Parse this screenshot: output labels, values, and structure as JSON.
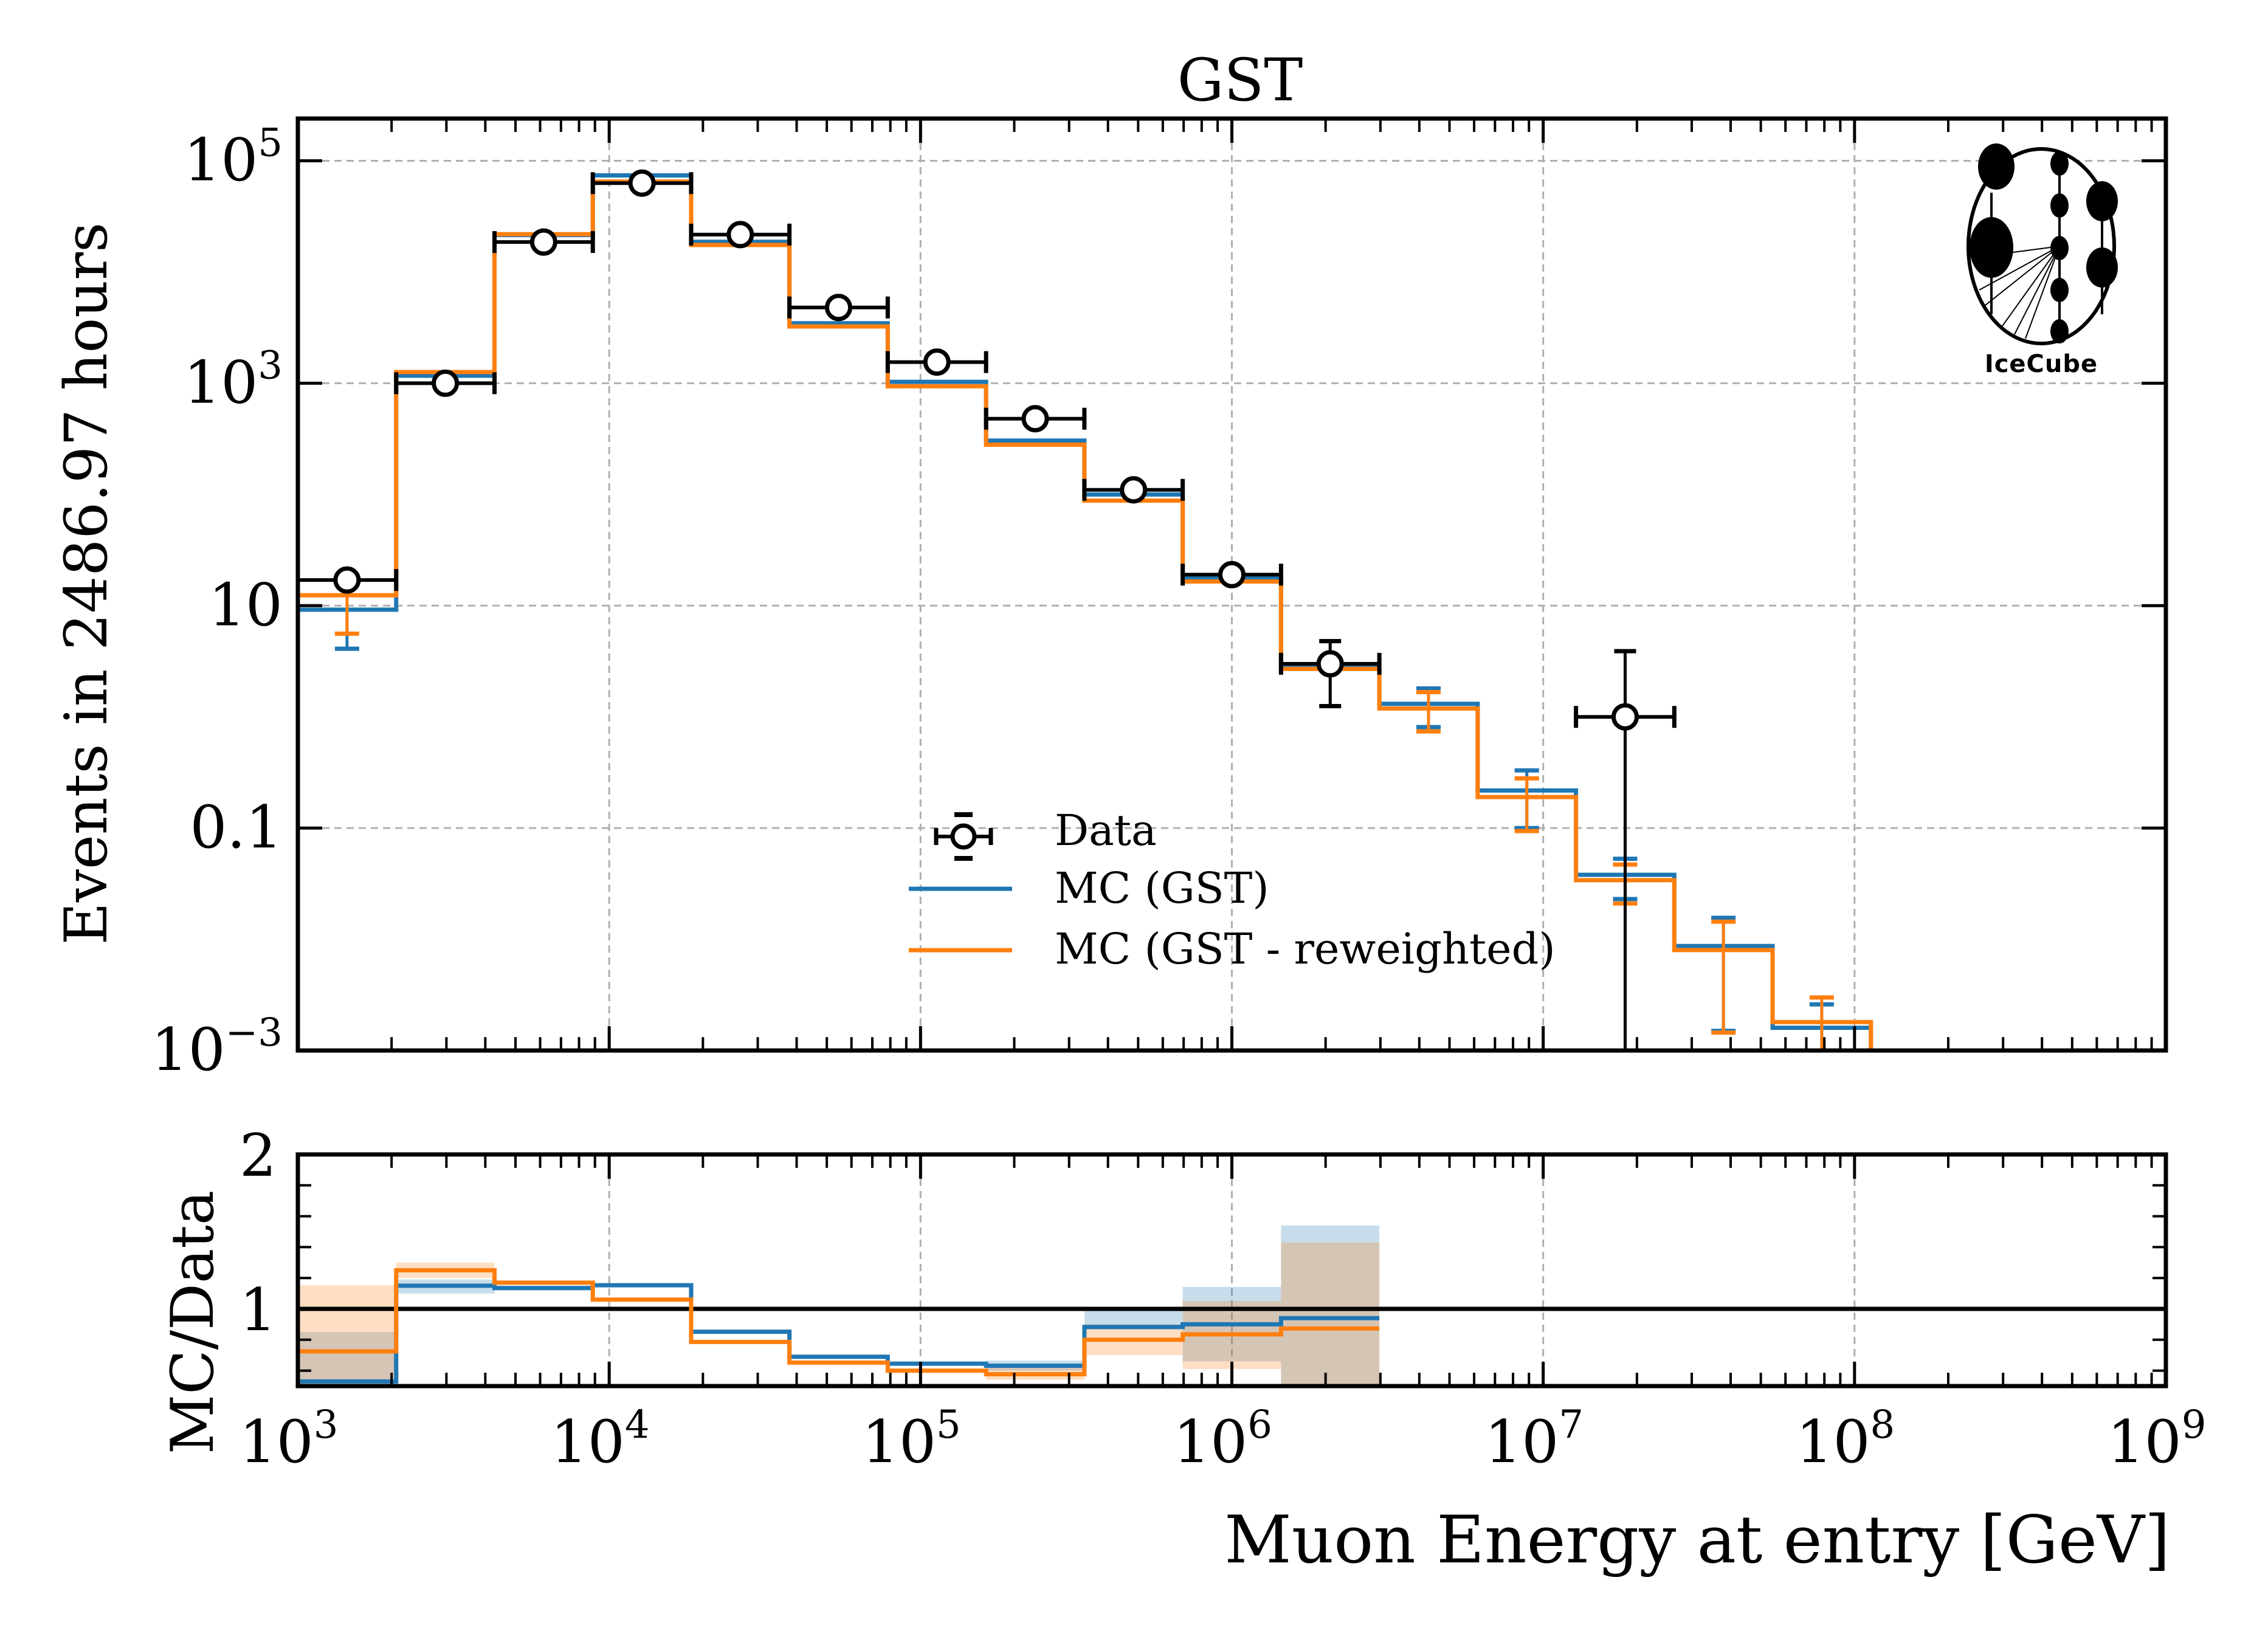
{
  "chart_data": [
    {
      "panel": "main",
      "type": "histogram-step",
      "title": "GST",
      "xlabel": "",
      "ylabel": "Events in 2486.97 hours",
      "xscale": "log",
      "yscale": "log",
      "xlim": [
        1000,
        1000000000
      ],
      "ylim": [
        0.001,
        240000
      ],
      "grid": true,
      "bin_edges_log10": [
        3.0,
        3.3158,
        3.6316,
        3.9474,
        4.2632,
        4.5789,
        4.8947,
        5.2105,
        5.5263,
        5.8421,
        6.1579,
        6.4737,
        6.7895,
        7.1053,
        7.4211,
        7.7368,
        8.0526
      ],
      "yticks": [
        {
          "base": "10",
          "exp": "5",
          "value": 100000
        },
        {
          "base": "10",
          "exp": "3",
          "value": 1000
        },
        {
          "base": "10",
          "exp": "",
          "value": 10
        },
        {
          "base": "0.1",
          "exp": "",
          "value": 0.1
        },
        {
          "base": "10",
          "exp": "−3",
          "value": 0.001
        }
      ],
      "series": [
        {
          "name": "MC (GST)",
          "color": "#1f77b4",
          "values": [
            9.2,
            1170,
            21500,
            74000,
            18700,
            3460,
            1030,
            305,
            100,
            18,
            2.9,
            1.31,
            0.218,
            0.038,
            0.0087,
            0.0016
          ],
          "err_low": [
            4.1,
            null,
            null,
            null,
            null,
            null,
            null,
            null,
            null,
            null,
            null,
            0.81,
            0.1,
            0.023,
            0.0015,
            0.0001
          ],
          "err_high": [
            null,
            null,
            null,
            null,
            null,
            null,
            null,
            null,
            null,
            null,
            null,
            1.8,
            0.33,
            0.053,
            0.0156,
            0.0026
          ]
        },
        {
          "name": "MC (GST - reweighted)",
          "color": "#ff7f0e",
          "values": [
            12.4,
            1260,
            21900,
            65000,
            17500,
            3240,
            940,
            280,
            88,
            16.5,
            2.7,
            1.19,
            0.19,
            0.034,
            0.008,
            0.0018
          ],
          "err_low": [
            5.6,
            null,
            null,
            null,
            null,
            null,
            null,
            null,
            null,
            null,
            null,
            0.74,
            0.094,
            0.021,
            0.00145,
            0.0001
          ],
          "err_high": [
            null,
            null,
            null,
            null,
            null,
            null,
            null,
            null,
            null,
            null,
            null,
            1.67,
            0.28,
            0.047,
            0.0144,
            0.003
          ]
        }
      ],
      "data_points": {
        "name": "Data",
        "color": "#000000",
        "bins": [
          0,
          1,
          2,
          3,
          4,
          5,
          6,
          7,
          8,
          9,
          10,
          13
        ],
        "values": [
          17,
          1000,
          18600,
          63000,
          21700,
          4800,
          1550,
          480,
          110,
          19,
          3.0,
          1.0
        ],
        "err_low": [
          null,
          null,
          null,
          null,
          null,
          null,
          null,
          null,
          null,
          null,
          1.25,
          0.0
        ],
        "err_high": [
          null,
          null,
          null,
          null,
          null,
          null,
          null,
          null,
          null,
          null,
          4.8,
          3.9
        ]
      },
      "legend": {
        "placement": "lower-center",
        "entries": [
          {
            "label": "Data",
            "kind": "errorbar-marker",
            "color": "#000000"
          },
          {
            "label": "MC (GST)",
            "kind": "line",
            "color": "#1f77b4"
          },
          {
            "label": "MC (GST - reweighted)",
            "kind": "line",
            "color": "#ff7f0e"
          }
        ]
      },
      "annotations": [
        {
          "text": "IceCube",
          "kind": "logo",
          "placement": "top-right"
        }
      ]
    },
    {
      "panel": "ratio",
      "type": "histogram-step",
      "xlabel": "Muon Energy at entry [GeV]",
      "ylabel": "MC/Data",
      "xscale": "log",
      "xlim": [
        1000,
        1000000000
      ],
      "ylim": [
        0.5,
        2
      ],
      "reference_line": 1,
      "yticks": [
        {
          "label": "2",
          "value": 2
        },
        {
          "label": "1",
          "value": 1
        }
      ],
      "xticks": [
        {
          "base": "10",
          "exp": "3",
          "value": 1000
        },
        {
          "base": "10",
          "exp": "4",
          "value": 10000
        },
        {
          "base": "10",
          "exp": "5",
          "value": 100000
        },
        {
          "base": "10",
          "exp": "6",
          "value": 1000000
        },
        {
          "base": "10",
          "exp": "7",
          "value": 10000000
        },
        {
          "base": "10",
          "exp": "8",
          "value": 100000000
        },
        {
          "base": "10",
          "exp": "9",
          "value": 1000000000
        }
      ],
      "series": [
        {
          "name": "MC (GST)",
          "color": "#1f77b4",
          "values": [
            0.53,
            1.15,
            1.135,
            1.153,
            0.852,
            0.69,
            0.645,
            0.632,
            0.883,
            0.9,
            0.94
          ],
          "band_low": [
            0.3,
            1.1,
            1.12,
            1.14,
            0.84,
            0.68,
            0.635,
            0.6,
            0.866,
            0.66,
            0.3
          ],
          "band_high": [
            0.85,
            1.19,
            1.15,
            1.165,
            0.865,
            0.7,
            0.655,
            0.665,
            0.99,
            1.142,
            1.54
          ]
        },
        {
          "name": "MC (GST - reweighted)",
          "color": "#ff7f0e",
          "values": [
            0.725,
            1.25,
            1.17,
            1.06,
            0.786,
            0.652,
            0.6,
            0.577,
            0.8,
            0.835,
            0.873
          ],
          "band_low": [
            0.3,
            1.2,
            1.16,
            1.05,
            0.775,
            0.64,
            0.59,
            0.54,
            0.7,
            0.61,
            0.3
          ],
          "band_high": [
            1.153,
            1.3,
            1.18,
            1.07,
            0.8,
            0.665,
            0.61,
            0.62,
            0.9,
            1.05,
            1.43
          ]
        }
      ]
    }
  ]
}
